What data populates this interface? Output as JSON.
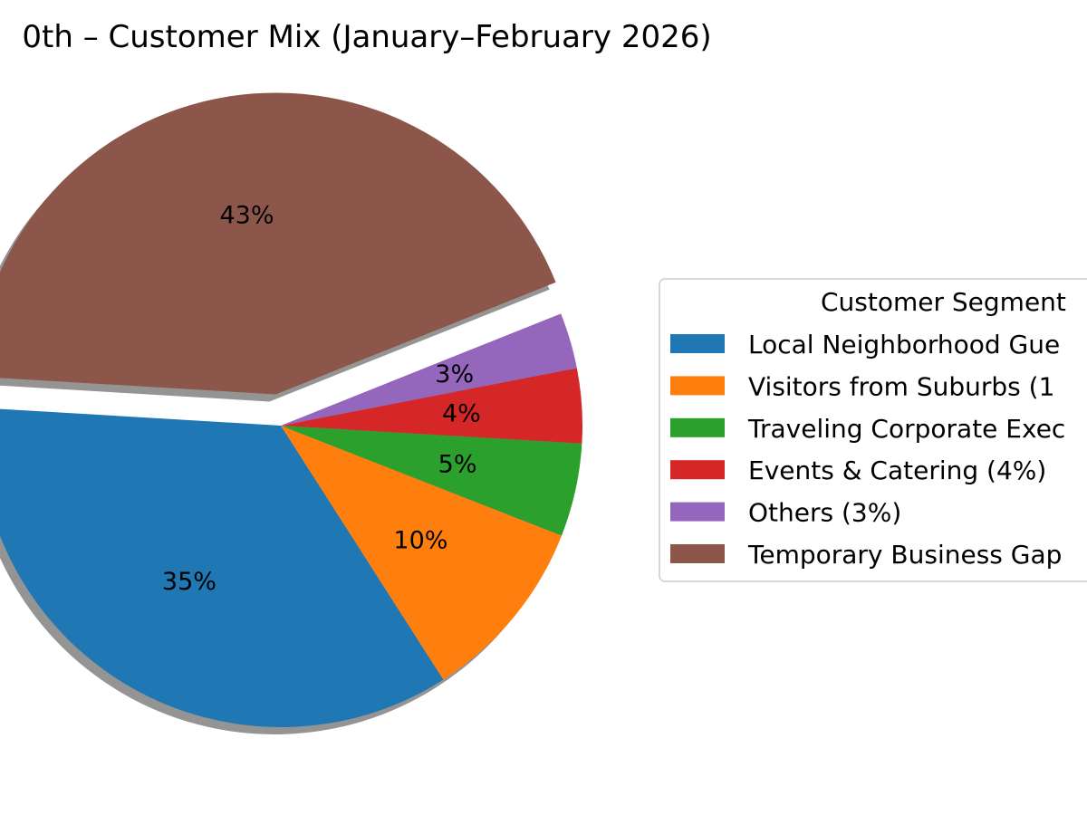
{
  "chart_data": {
    "type": "pie",
    "title": "0th – Customer Mix (January–February 2026)",
    "slices": [
      {
        "pct_label": "35%",
        "value": 35,
        "legend_label": "Local Neighborhood Gue",
        "color": "#1f77b4",
        "exploded": false
      },
      {
        "pct_label": "10%",
        "value": 10,
        "legend_label": "Visitors from Suburbs (1",
        "color": "#ff7f0e",
        "exploded": false
      },
      {
        "pct_label": "5%",
        "value": 5,
        "legend_label": "Traveling Corporate Exec",
        "color": "#2ca02c",
        "exploded": false
      },
      {
        "pct_label": "4%",
        "value": 4,
        "legend_label": "Events & Catering (4%)",
        "color": "#d62728",
        "exploded": false
      },
      {
        "pct_label": "3%",
        "value": 3,
        "legend_label": "Others (3%)",
        "color": "#9467bd",
        "exploded": false
      },
      {
        "pct_label": "43%",
        "value": 43,
        "legend_label": "Temporary Business Gap",
        "color": "#8c564b",
        "exploded": true
      }
    ],
    "legend": {
      "title": "Customer Segment",
      "placement": "right"
    },
    "shadow": true
  }
}
